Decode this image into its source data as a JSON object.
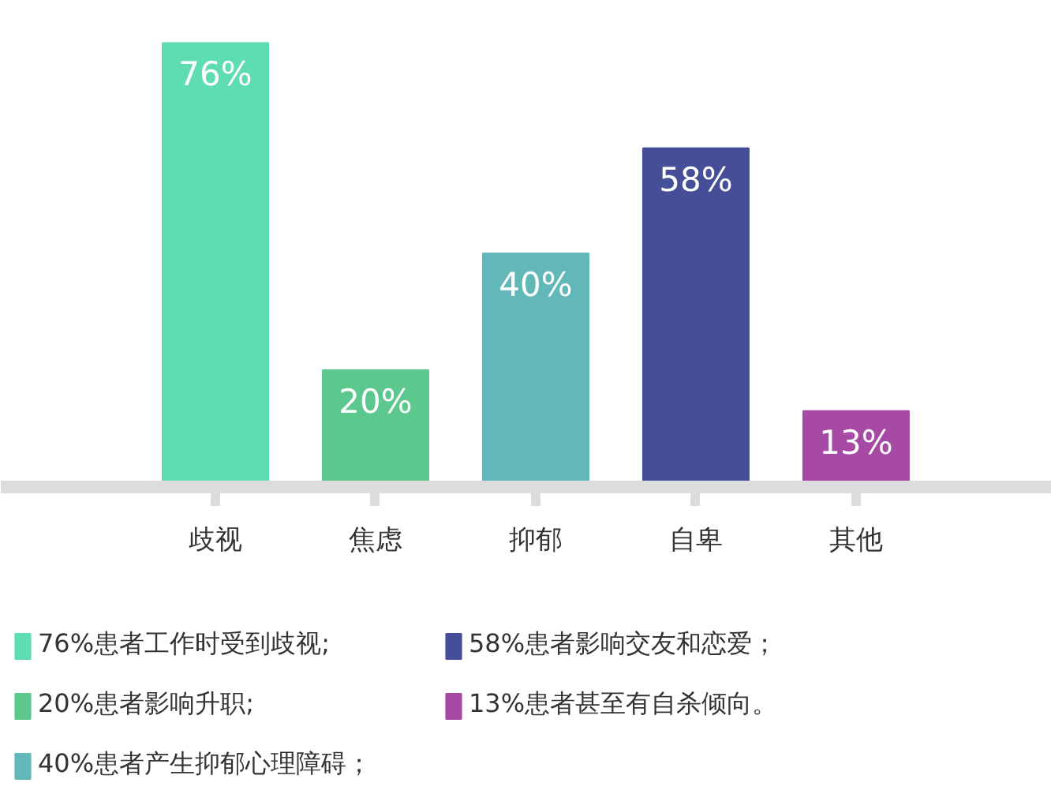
{
  "chart_data": {
    "type": "bar",
    "categories": [
      "歧视",
      "焦虑",
      "抑郁",
      "自卑",
      "其他"
    ],
    "series": [
      {
        "name": "76%患者工作时受到歧视;",
        "color": "#5edcb4",
        "values": [
          76,
          null,
          null,
          null,
          null
        ],
        "value_labels": [
          "76%",
          null,
          null,
          null,
          null
        ]
      },
      {
        "name": "20%患者影响升职;",
        "color": "#5cc88e",
        "values": [
          null,
          20,
          null,
          null,
          null
        ],
        "value_labels": [
          null,
          "20%",
          null,
          null,
          null
        ]
      },
      {
        "name": "40%患者产生抑郁心理障碍；",
        "color": "#62b8b8",
        "values": [
          null,
          null,
          40,
          null,
          null
        ],
        "value_labels": [
          null,
          null,
          "40%",
          null,
          null
        ]
      },
      {
        "name": "58%患者影响交友和恋爱；",
        "color": "#464e98",
        "values": [
          null,
          null,
          null,
          58,
          null
        ],
        "value_labels": [
          null,
          null,
          null,
          "58%",
          null
        ]
      },
      {
        "name": "13%患者甚至有自杀倾向。",
        "color": "#a64aa6",
        "values": [
          null,
          null,
          null,
          null,
          13
        ],
        "value_labels": [
          null,
          null,
          null,
          null,
          "13%"
        ]
      }
    ],
    "legend": "bottom"
  }
}
